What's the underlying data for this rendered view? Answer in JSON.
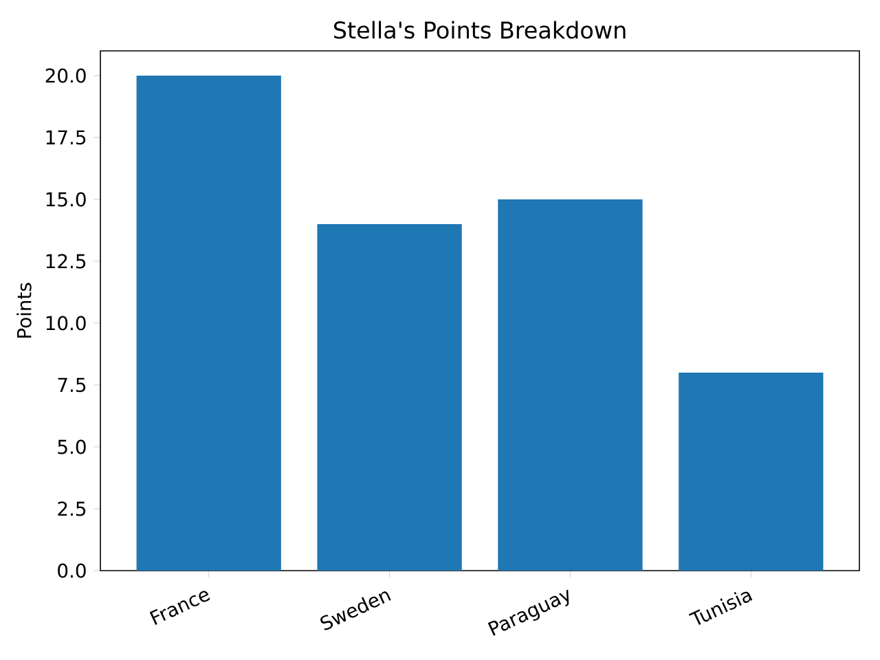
{
  "chart_data": {
    "type": "bar",
    "title": "Stella's Points Breakdown",
    "ylabel": "Points",
    "categories": [
      "France",
      "Sweden",
      "Paraguay",
      "Tunisia"
    ],
    "values": [
      20,
      14,
      15,
      8
    ],
    "color": "#1f77b4",
    "ylim": [
      0,
      21
    ],
    "yticks": [
      {
        "value": 0,
        "label": "0.0"
      },
      {
        "value": 2.5,
        "label": "2.5"
      },
      {
        "value": 5,
        "label": "5.0"
      },
      {
        "value": 7.5,
        "label": "7.5"
      },
      {
        "value": 10,
        "label": "10.0"
      },
      {
        "value": 12.5,
        "label": "12.5"
      },
      {
        "value": 15,
        "label": "15.0"
      },
      {
        "value": 17.5,
        "label": "17.5"
      },
      {
        "value": 20,
        "label": "20.0"
      }
    ]
  }
}
